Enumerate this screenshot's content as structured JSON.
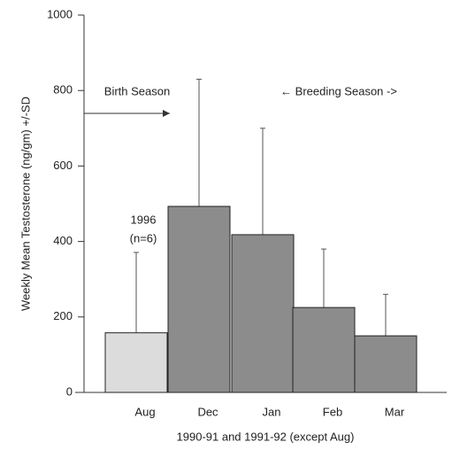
{
  "chart_data": {
    "type": "bar",
    "ylabel": "Weekly Mean Testosterone (ng/gm) +/-SD",
    "xlabel": "1990-91 and 1991-92 (except Aug)",
    "categories": [
      "Aug",
      "Dec",
      "Jan",
      "Feb",
      "Mar"
    ],
    "values": [
      158,
      493,
      418,
      225,
      150
    ],
    "errors": [
      213,
      337,
      282,
      155,
      110
    ],
    "colors": [
      "#dcdcdc",
      "#8c8c8c",
      "#8c8c8c",
      "#8c8c8c",
      "#8c8c8c"
    ],
    "ylim": [
      0,
      1000
    ],
    "yticks": [
      0,
      200,
      400,
      600,
      800,
      1000
    ],
    "annotations": [
      "Birth Season",
      "← Breeding Season ->",
      "1996",
      "(n=6)"
    ]
  }
}
